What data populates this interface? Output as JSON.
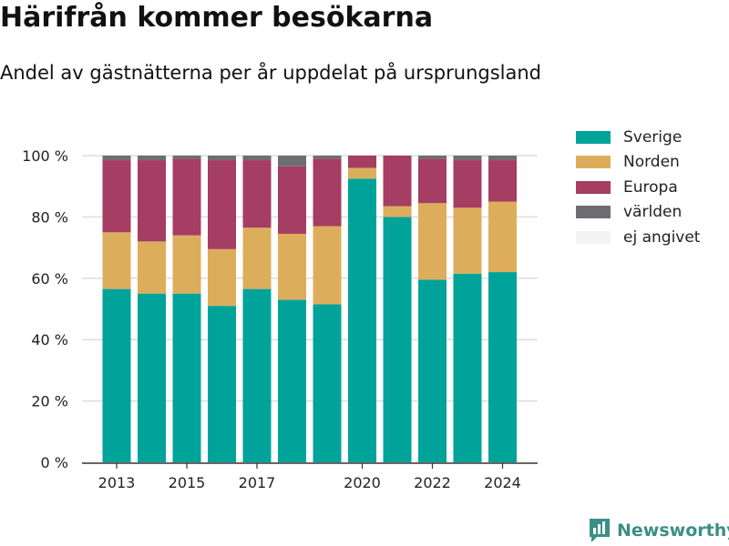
{
  "header": {
    "title": "Härifrån kommer besökarna",
    "subtitle": "Andel av gästnätterna per år uppdelat på ursprungsland"
  },
  "brand": {
    "name": "Newsworthy"
  },
  "chart_data": {
    "type": "bar",
    "stacked": true,
    "categories": [
      "2013",
      "2014",
      "2015",
      "2016",
      "2017",
      "2018",
      "2019",
      "2020",
      "2021",
      "2022",
      "2023",
      "2024"
    ],
    "x_tick_labels": [
      "2013",
      "2015",
      "2017",
      "2020",
      "2022",
      "2024"
    ],
    "y_ticks": [
      "0 %",
      "20 %",
      "40 %",
      "60 %",
      "80 %",
      "100 %"
    ],
    "ylim": [
      0,
      100
    ],
    "grid": true,
    "legend_position": "right",
    "title": "",
    "xlabel": "",
    "ylabel": "",
    "series": [
      {
        "name": "Sverige",
        "color": "#00a39a",
        "values": [
          56.5,
          55,
          55,
          51,
          56.5,
          53,
          51.5,
          92.5,
          80,
          59.5,
          61.5,
          62
        ]
      },
      {
        "name": "Norden",
        "color": "#dcae5c",
        "values": [
          18.5,
          17,
          19,
          18.5,
          20,
          21.5,
          25.5,
          3.5,
          3.5,
          25,
          21.5,
          23
        ]
      },
      {
        "name": "Europa",
        "color": "#a63d63",
        "values": [
          23.5,
          26.5,
          25,
          29,
          22,
          22,
          22,
          4,
          16.5,
          14.5,
          15.5,
          13.5
        ]
      },
      {
        "name": "världen",
        "color": "#6d6e72",
        "values": [
          1.5,
          1.5,
          1,
          1.5,
          1.5,
          3.5,
          1,
          0,
          0,
          1,
          1.5,
          1.5
        ]
      },
      {
        "name": "ej angivet",
        "color": "#f3f3f3",
        "values": [
          0,
          0,
          0,
          0,
          0,
          0,
          0,
          0,
          0,
          0,
          0,
          0
        ]
      }
    ]
  }
}
